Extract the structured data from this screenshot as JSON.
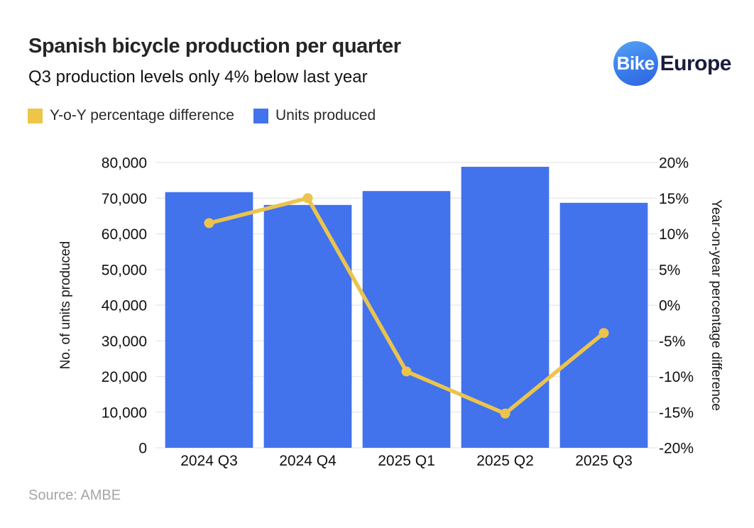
{
  "header": {
    "title": "Spanish bicycle production per quarter",
    "subtitle": "Q3 production levels only 4% below last year"
  },
  "logo": {
    "icon_text": "Bike",
    "wordmark": "Europe"
  },
  "legend": {
    "items": [
      {
        "label": "Y-o-Y percentage difference",
        "color": "#EDC647"
      },
      {
        "label": "Units produced",
        "color": "#4273EC"
      }
    ]
  },
  "source": "Source: AMBE",
  "chart_data": {
    "type": "bar",
    "subtype": "dual-axis bar + line",
    "title": "Spanish bicycle production per quarter",
    "subtitle": "Q3 production levels only 4% below last year",
    "categories": [
      "2024 Q3",
      "2024 Q4",
      "2025 Q1",
      "2025 Q2",
      "2025 Q3"
    ],
    "series": [
      {
        "name": "Units produced",
        "kind": "bar",
        "axis": "left",
        "color": "#4273EC",
        "values": [
          71700,
          68100,
          72000,
          78800,
          68700
        ]
      },
      {
        "name": "Y-o-Y percentage difference",
        "kind": "line",
        "axis": "right",
        "color": "#ECC44D",
        "values": [
          11.5,
          15,
          -9.3,
          -15.2,
          -3.9
        ]
      }
    ],
    "left_axis": {
      "title": "No. of units produced",
      "min": 0,
      "max": 80000,
      "tick_interval": 10000,
      "tick_labels": [
        "0",
        "10,000",
        "20,000",
        "30,000",
        "40,000",
        "50,000",
        "60,000",
        "70,000",
        "80,000"
      ]
    },
    "right_axis": {
      "title": "Year-on-year percentage difference",
      "min": -20,
      "max": 20,
      "tick_interval": 5,
      "tick_labels": [
        "-20%",
        "-15%",
        "-10%",
        "-5%",
        "0%",
        "5%",
        "10%",
        "15%",
        "20%"
      ]
    },
    "grid": true,
    "legend_position": "top-left"
  }
}
